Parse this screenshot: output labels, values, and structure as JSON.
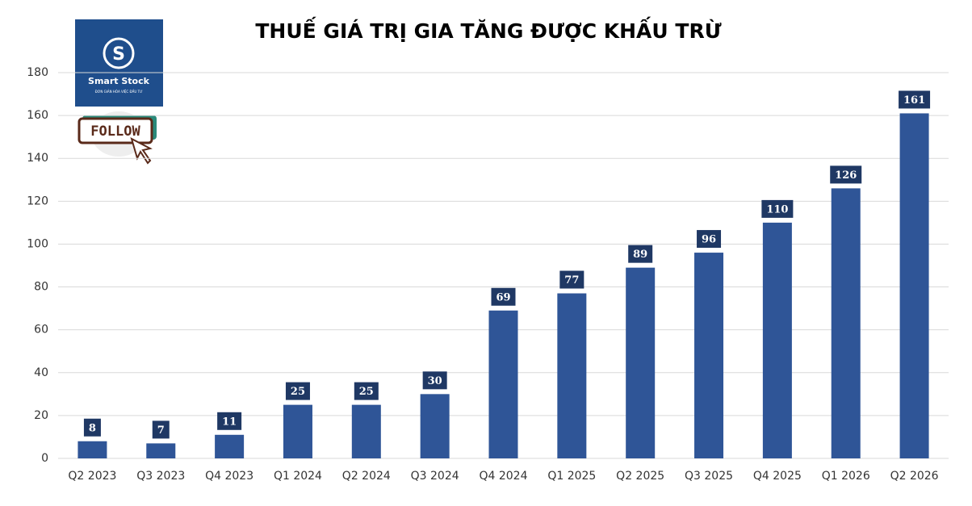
{
  "chart_data": {
    "type": "bar",
    "title": "THUẾ GIÁ TRỊ GIA TĂNG ĐƯỢC KHẤU TRỪ",
    "logo_text": "Smart Stock",
    "logo_tagline": "ĐƠN GIẢN HÓA VIỆC ĐẦU TƯ",
    "button_text": "FOLLOW",
    "categories": [
      "Q2 2023",
      "Q3 2023",
      "Q4 2023",
      "Q1 2024",
      "Q2 2024",
      "Q3 2024",
      "Q4 2024",
      "Q1 2025",
      "Q2 2025",
      "Q3 2025",
      "Q4 2025",
      "Q1 2026",
      "Q2 2026"
    ],
    "values": [
      8,
      7,
      11,
      25,
      25,
      30,
      69,
      77,
      89,
      96,
      110,
      126,
      161
    ],
    "color": "#2f5597",
    "label_color": "#1f3864",
    "ylim": [
      0,
      180
    ],
    "yticks": [
      0,
      20,
      40,
      60,
      80,
      100,
      120,
      140,
      160,
      180
    ],
    "grid": true
  }
}
